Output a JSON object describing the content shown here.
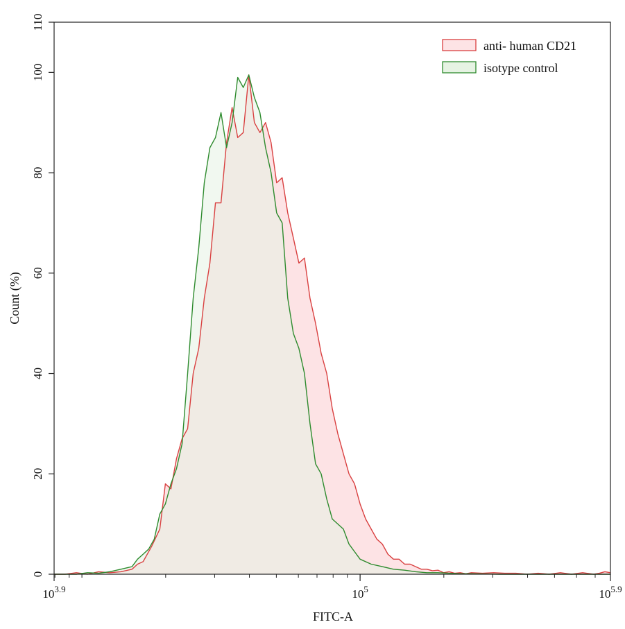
{
  "chart_data": {
    "type": "area",
    "title": "",
    "xlabel": "FITC-A",
    "ylabel": "Count (%)",
    "xscale": "log10",
    "xlim": [
      3.9,
      5.9
    ],
    "ylim": [
      0,
      110
    ],
    "grid": false,
    "legend_position": "top-right",
    "x_ticks": [
      {
        "exp": 3.9,
        "base": "10",
        "sup": "3.9"
      },
      {
        "exp": 5.0,
        "base": "10",
        "sup": "5"
      },
      {
        "exp": 5.9,
        "base": "10",
        "sup": "5.9"
      }
    ],
    "y_ticks": [
      "0",
      "20",
      "40",
      "60",
      "80",
      "100",
      "110"
    ],
    "y_tick_values": [
      0,
      20,
      40,
      60,
      80,
      100,
      110
    ],
    "series": [
      {
        "name": "anti- human CD21",
        "line_color": "#d94040",
        "fill_color": "#fde3e5",
        "x": [
          3.9,
          3.94,
          3.98,
          4.02,
          4.06,
          4.1,
          4.14,
          4.18,
          4.2,
          4.22,
          4.25,
          4.28,
          4.3,
          4.32,
          4.34,
          4.36,
          4.38,
          4.4,
          4.42,
          4.44,
          4.46,
          4.48,
          4.5,
          4.52,
          4.54,
          4.56,
          4.58,
          4.6,
          4.62,
          4.64,
          4.66,
          4.68,
          4.7,
          4.72,
          4.74,
          4.76,
          4.78,
          4.8,
          4.82,
          4.84,
          4.86,
          4.88,
          4.9,
          4.92,
          4.94,
          4.96,
          4.98,
          5.0,
          5.02,
          5.04,
          5.06,
          5.08,
          5.1,
          5.12,
          5.14,
          5.16,
          5.18,
          5.2,
          5.22,
          5.24,
          5.26,
          5.28,
          5.3,
          5.32,
          5.34,
          5.36,
          5.38,
          5.4,
          5.44,
          5.48,
          5.52,
          5.56,
          5.6,
          5.64,
          5.68,
          5.72,
          5.76,
          5.8,
          5.84,
          5.86,
          5.88,
          5.9
        ],
        "y": [
          0,
          0,
          0.3,
          0,
          0.5,
          0.3,
          0.5,
          1.0,
          2.0,
          2.5,
          5.5,
          9.0,
          18.0,
          17.0,
          23.0,
          27.0,
          29.0,
          40.0,
          45.0,
          55.0,
          62.0,
          74.0,
          74.0,
          86.0,
          93.0,
          87.0,
          88.0,
          99.5,
          90.0,
          88.0,
          90.0,
          86.0,
          78.0,
          79.0,
          72.0,
          67.0,
          62.0,
          63.0,
          55.0,
          50.0,
          44.0,
          40.0,
          33.0,
          28.0,
          24.0,
          20.0,
          18.0,
          14.0,
          11.0,
          9.0,
          7.0,
          6.0,
          4.0,
          3.0,
          3.0,
          2.0,
          2.0,
          1.5,
          1.0,
          1.0,
          0.7,
          0.8,
          0.3,
          0.5,
          0.2,
          0.3,
          0.1,
          0.3,
          0.2,
          0.3,
          0.2,
          0.2,
          0,
          0.2,
          0,
          0.3,
          0,
          0.3,
          0,
          0.2,
          0.5,
          0.3
        ]
      },
      {
        "name": "isotype control",
        "line_color": "#2e8b2e",
        "fill_color": "#e6f3e3",
        "x": [
          3.9,
          3.94,
          3.98,
          4.02,
          4.06,
          4.1,
          4.14,
          4.18,
          4.2,
          4.22,
          4.24,
          4.26,
          4.28,
          4.3,
          4.32,
          4.34,
          4.36,
          4.38,
          4.4,
          4.42,
          4.44,
          4.46,
          4.48,
          4.5,
          4.52,
          4.54,
          4.56,
          4.58,
          4.6,
          4.62,
          4.64,
          4.66,
          4.68,
          4.7,
          4.72,
          4.74,
          4.76,
          4.78,
          4.8,
          4.82,
          4.84,
          4.86,
          4.88,
          4.9,
          4.92,
          4.94,
          4.96,
          5.0,
          5.04,
          5.08,
          5.12,
          5.16,
          5.2,
          5.24,
          5.28,
          5.32,
          5.36,
          5.4,
          5.5,
          5.6,
          5.7,
          5.8,
          5.9
        ],
        "y": [
          0,
          0,
          0,
          0.3,
          0.2,
          0.5,
          1.0,
          1.5,
          3.0,
          4.0,
          5.0,
          7.0,
          12.0,
          14.0,
          18.0,
          21.0,
          26.0,
          40.0,
          55.0,
          65.0,
          78.0,
          85.0,
          87.0,
          92.0,
          85.0,
          90.0,
          99.0,
          97.0,
          99.5,
          95.0,
          92.0,
          85.0,
          80.0,
          72.0,
          70.0,
          55.0,
          48.0,
          45.0,
          40.0,
          30.0,
          22.0,
          20.0,
          15.0,
          11.0,
          10.0,
          9.0,
          6.0,
          3.0,
          2.0,
          1.5,
          1.0,
          0.8,
          0.5,
          0.3,
          0.3,
          0.2,
          0.1,
          0.1,
          0,
          0,
          0,
          0,
          0
        ]
      }
    ]
  }
}
